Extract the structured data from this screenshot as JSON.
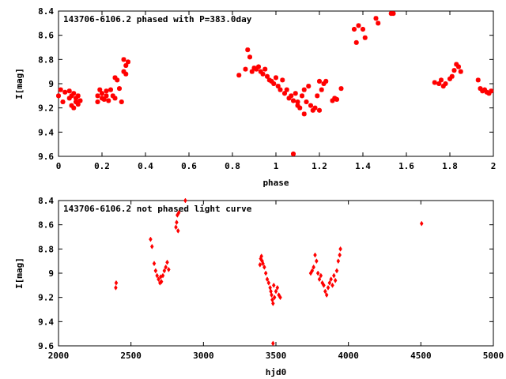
{
  "chart_data": [
    {
      "type": "scatter",
      "title": "143706-6106.2 phased with P=383.0day",
      "xlabel": "phase",
      "ylabel": "I[mag]",
      "xlim": [
        0,
        2
      ],
      "ylim": [
        9.6,
        8.4
      ],
      "y_inverted": true,
      "grid": false,
      "xticks": [
        "0",
        "0.2",
        "0.4",
        "0.6",
        "0.8",
        "1",
        "1.2",
        "1.4",
        "1.6",
        "1.8",
        "2"
      ],
      "yticks": [
        "8.4",
        "8.6",
        "8.8",
        "9",
        "9.2",
        "9.4",
        "9.6"
      ],
      "marker_color": "#ff0000",
      "marker": "asterisk",
      "series": [
        {
          "x": [
            0.0,
            0.01,
            0.02,
            0.03,
            0.05,
            0.05,
            0.06,
            0.06,
            0.07,
            0.07,
            0.08,
            0.08,
            0.09,
            0.09,
            0.1,
            0.18,
            0.18,
            0.19,
            0.2,
            0.2,
            0.21,
            0.22,
            0.22,
            0.23,
            0.24,
            0.25,
            0.26,
            0.26,
            0.27,
            0.28,
            0.29,
            0.3,
            0.3,
            0.31,
            0.31,
            0.32,
            0.83,
            0.86,
            0.87,
            0.88,
            0.89,
            0.9,
            0.91,
            0.92,
            0.93,
            0.94,
            0.95,
            0.96,
            0.97,
            0.98,
            0.99,
            1.0,
            1.01,
            1.02,
            1.03,
            1.04,
            1.05,
            1.06,
            1.07,
            1.08,
            1.09,
            1.1,
            1.1,
            1.11,
            1.12,
            1.13,
            1.13,
            1.14,
            1.15,
            1.16,
            1.17,
            1.18,
            1.19,
            1.2,
            1.2,
            1.21,
            1.22,
            1.23,
            1.26,
            1.27,
            1.28,
            1.3,
            1.08,
            1.36,
            1.37,
            1.38,
            1.4,
            1.41,
            1.46,
            1.47,
            1.53,
            1.54,
            1.73,
            1.75,
            1.76,
            1.77,
            1.78,
            1.8,
            1.81,
            1.82,
            1.83,
            1.84,
            1.85,
            1.93,
            1.94,
            1.95,
            1.96,
            1.97,
            1.98,
            1.99
          ],
          "y": [
            9.1,
            9.05,
            9.15,
            9.07,
            9.12,
            9.06,
            9.18,
            9.1,
            9.2,
            9.08,
            9.15,
            9.12,
            9.17,
            9.1,
            9.14,
            9.1,
            9.15,
            9.05,
            9.08,
            9.12,
            9.13,
            9.1,
            9.06,
            9.14,
            9.05,
            9.1,
            8.95,
            9.12,
            8.97,
            9.04,
            9.15,
            8.8,
            8.9,
            8.85,
            8.92,
            8.82,
            8.93,
            8.88,
            8.72,
            8.78,
            8.9,
            8.87,
            8.88,
            8.86,
            8.9,
            8.92,
            8.88,
            8.94,
            8.97,
            8.98,
            9.0,
            8.95,
            9.02,
            9.05,
            8.97,
            9.08,
            9.05,
            9.12,
            9.1,
            9.14,
            9.08,
            9.18,
            9.15,
            9.2,
            9.1,
            9.25,
            9.05,
            9.15,
            9.02,
            9.18,
            9.22,
            9.2,
            9.1,
            9.22,
            8.98,
            9.05,
            9.0,
            8.98,
            9.14,
            9.12,
            9.13,
            9.04,
            9.58,
            8.55,
            8.66,
            8.52,
            8.55,
            8.62,
            8.46,
            8.5,
            8.42,
            8.42,
            8.99,
            9.0,
            8.97,
            9.02,
            9.0,
            8.96,
            8.94,
            8.89,
            8.84,
            8.86,
            8.9,
            8.97,
            9.04,
            9.06,
            9.05,
            9.07,
            9.08,
            9.06
          ]
        }
      ]
    },
    {
      "type": "scatter",
      "title": "143706-6106.2 not phased light curve",
      "xlabel": "hjd0",
      "ylabel": "I[mag]",
      "xlim": [
        2000,
        5000
      ],
      "ylim": [
        9.6,
        8.4
      ],
      "y_inverted": true,
      "grid": false,
      "xticks": [
        "2000",
        "2500",
        "3000",
        "3500",
        "4000",
        "4500",
        "5000"
      ],
      "yticks": [
        "8.4",
        "8.6",
        "8.8",
        "9",
        "9.2",
        "9.4",
        "9.6"
      ],
      "marker_color": "#ff0000",
      "marker": "diamond",
      "series": [
        {
          "x": [
            2395,
            2398,
            2635,
            2645,
            2660,
            2670,
            2680,
            2690,
            2700,
            2705,
            2710,
            2720,
            2730,
            2740,
            2750,
            2760,
            2810,
            2815,
            2820,
            2825,
            2830,
            2875,
            3390,
            3395,
            3400,
            3405,
            3410,
            3420,
            3430,
            3440,
            3450,
            3460,
            3465,
            3470,
            3475,
            3480,
            3485,
            3490,
            3500,
            3510,
            3520,
            3530,
            3480,
            3740,
            3750,
            3760,
            3770,
            3780,
            3790,
            3800,
            3810,
            3820,
            3830,
            3840,
            3850,
            3860,
            3870,
            3880,
            3890,
            3900,
            3910,
            3920,
            3930,
            3940,
            3945,
            4505
          ],
          "y": [
            9.12,
            9.08,
            8.72,
            8.78,
            8.92,
            8.98,
            9.02,
            9.05,
            9.08,
            9.03,
            9.07,
            9.02,
            8.98,
            8.95,
            8.91,
            8.97,
            8.62,
            8.58,
            8.52,
            8.65,
            8.5,
            8.4,
            8.93,
            8.88,
            8.86,
            8.9,
            8.92,
            8.95,
            9.0,
            9.05,
            9.08,
            9.12,
            9.15,
            9.18,
            9.22,
            9.25,
            9.1,
            9.2,
            9.15,
            9.12,
            9.18,
            9.2,
            9.58,
            9.0,
            8.98,
            8.95,
            8.85,
            8.9,
            9.0,
            9.05,
            9.02,
            9.08,
            9.1,
            9.15,
            9.18,
            9.12,
            9.08,
            9.05,
            9.1,
            9.02,
            9.06,
            8.98,
            8.9,
            8.85,
            8.8,
            8.59
          ]
        }
      ]
    }
  ]
}
